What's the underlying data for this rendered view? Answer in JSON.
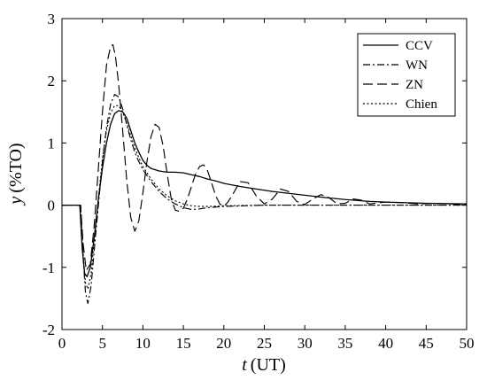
{
  "chart_data": {
    "type": "line",
    "xlabel_var": "t",
    "xlabel_unit": "(UT)",
    "ylabel_var": "y",
    "ylabel_unit": "(%TO)",
    "xlim": [
      0,
      50
    ],
    "ylim": [
      -2,
      3
    ],
    "xticks": [
      0,
      5,
      10,
      15,
      20,
      25,
      30,
      35,
      40,
      45,
      50
    ],
    "yticks": [
      -2,
      -1,
      0,
      1,
      2,
      3
    ],
    "grid": false,
    "legend_position": "top-right",
    "series": [
      {
        "name": "CCV",
        "dash": "solid",
        "x": [
          0,
          2.2,
          2.5,
          2.8,
          3.1,
          3.5,
          4,
          4.5,
          5,
          5.5,
          6,
          6.5,
          7,
          7.5,
          8,
          8.5,
          9,
          9.5,
          10,
          10.5,
          11,
          12,
          13,
          14,
          15,
          16,
          17,
          18,
          19,
          20,
          22,
          24,
          26,
          28,
          30,
          32,
          35,
          38,
          40,
          45,
          50
        ],
        "y": [
          0,
          0,
          -0.7,
          -1.1,
          -1.15,
          -1.0,
          -0.5,
          0.1,
          0.6,
          1.0,
          1.3,
          1.47,
          1.52,
          1.5,
          1.4,
          1.2,
          1.0,
          0.85,
          0.72,
          0.64,
          0.59,
          0.55,
          0.53,
          0.53,
          0.52,
          0.49,
          0.46,
          0.42,
          0.39,
          0.35,
          0.3,
          0.26,
          0.22,
          0.19,
          0.16,
          0.13,
          0.09,
          0.06,
          0.05,
          0.03,
          0.02
        ]
      },
      {
        "name": "WN",
        "dash": "dashdot",
        "x": [
          0,
          2.3,
          2.6,
          2.9,
          3.2,
          3.6,
          4,
          4.5,
          5,
          5.5,
          6,
          6.5,
          7,
          7.5,
          8,
          8.5,
          9,
          9.5,
          10,
          11,
          12,
          13,
          14,
          15,
          16,
          17,
          18,
          20,
          25,
          30,
          40,
          50
        ],
        "y": [
          0,
          0,
          -0.8,
          -1.4,
          -1.58,
          -1.3,
          -0.7,
          0.0,
          0.7,
          1.25,
          1.62,
          1.78,
          1.74,
          1.55,
          1.3,
          1.05,
          0.85,
          0.7,
          0.57,
          0.38,
          0.22,
          0.1,
          0.02,
          -0.04,
          -0.07,
          -0.06,
          -0.04,
          -0.02,
          0,
          0,
          0,
          0
        ]
      },
      {
        "name": "ZN",
        "dash": "longdash",
        "x": [
          0,
          2.3,
          2.6,
          3,
          3.5,
          4,
          4.5,
          5,
          5.5,
          6,
          6.3,
          6.6,
          7,
          7.5,
          8,
          8.5,
          9,
          9.5,
          10,
          10.5,
          11,
          11.5,
          12,
          12.5,
          13,
          13.5,
          14,
          14.5,
          15,
          15.5,
          16,
          16.5,
          17,
          17.5,
          18,
          18.5,
          19,
          19.5,
          20,
          20.5,
          21,
          22,
          23,
          24,
          25,
          26,
          27,
          28,
          29,
          30,
          31,
          32,
          33,
          34,
          35,
          36,
          37,
          38,
          40,
          42,
          44,
          46,
          48,
          50
        ],
        "y": [
          0,
          0,
          -0.6,
          -1.05,
          -0.95,
          -0.3,
          0.6,
          1.5,
          2.25,
          2.55,
          2.58,
          2.4,
          1.95,
          1.2,
          0.4,
          -0.2,
          -0.42,
          -0.25,
          0.2,
          0.7,
          1.1,
          1.3,
          1.25,
          0.95,
          0.5,
          0.1,
          -0.08,
          -0.1,
          -0.05,
          0.1,
          0.3,
          0.5,
          0.62,
          0.65,
          0.55,
          0.35,
          0.15,
          0.02,
          -0.02,
          0.05,
          0.15,
          0.38,
          0.36,
          0.15,
          0.02,
          0.1,
          0.26,
          0.22,
          0.06,
          0.01,
          0.1,
          0.17,
          0.12,
          0.02,
          0.03,
          0.1,
          0.08,
          0.02,
          0.05,
          0.04,
          0.02,
          0.03,
          0.02,
          0.01
        ]
      },
      {
        "name": "Chien",
        "dash": "dotted",
        "x": [
          0,
          2.3,
          2.6,
          2.9,
          3.2,
          3.6,
          4,
          4.5,
          5,
          5.5,
          6,
          6.5,
          7,
          7.5,
          8,
          8.5,
          9,
          9.5,
          10,
          11,
          12,
          13,
          14,
          15,
          16,
          17,
          18,
          20,
          25,
          30,
          40,
          50
        ],
        "y": [
          0,
          0,
          -0.75,
          -1.25,
          -1.35,
          -1.1,
          -0.55,
          0.1,
          0.75,
          1.2,
          1.48,
          1.6,
          1.6,
          1.5,
          1.32,
          1.12,
          0.92,
          0.76,
          0.62,
          0.42,
          0.26,
          0.15,
          0.07,
          0.02,
          -0.01,
          -0.02,
          -0.02,
          -0.01,
          0,
          0,
          0,
          0
        ]
      }
    ]
  }
}
